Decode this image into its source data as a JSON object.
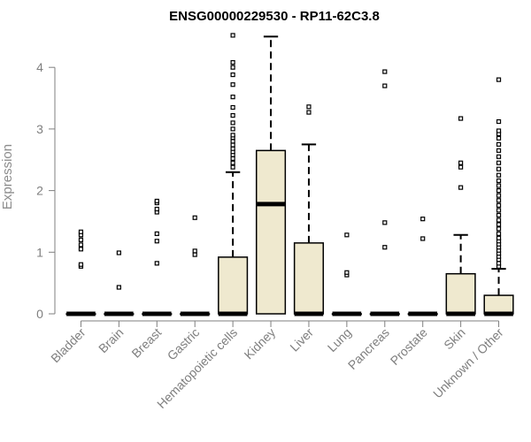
{
  "chart_data": {
    "type": "boxplot",
    "title": "ENSG00000229530 - RP11-62C3.8",
    "xlabel": "",
    "ylabel": "Expression",
    "ylim": [
      0,
      4.5
    ],
    "yticks": [
      0,
      1,
      2,
      3,
      4
    ],
    "box_fill": "#efe9cf",
    "categories": [
      "Bladder",
      "Brain",
      "Breast",
      "Gastric",
      "Hematopoietic cells",
      "Kidney",
      "Liver",
      "Lung",
      "Pancreas",
      "Prostate",
      "Skin",
      "Unknown / Other"
    ],
    "boxes": [
      {
        "q1": 0,
        "median": 0,
        "q3": 0,
        "whisker_low": 0,
        "whisker_high": 0,
        "outliers": [
          0.77,
          0.8,
          1.05,
          1.12,
          1.2,
          1.28,
          1.33
        ]
      },
      {
        "q1": 0,
        "median": 0,
        "q3": 0,
        "whisker_low": 0,
        "whisker_high": 0,
        "outliers": [
          0.43,
          0.99
        ]
      },
      {
        "q1": 0,
        "median": 0,
        "q3": 0,
        "whisker_low": 0,
        "whisker_high": 0,
        "outliers": [
          0.82,
          1.18,
          1.3,
          1.65,
          1.7,
          1.8,
          1.83
        ]
      },
      {
        "q1": 0,
        "median": 0,
        "q3": 0,
        "whisker_low": 0,
        "whisker_high": 0,
        "outliers": [
          0.96,
          1.02,
          1.56
        ]
      },
      {
        "q1": 0,
        "median": 0,
        "q3": 0.92,
        "whisker_low": 0,
        "whisker_high": 2.3,
        "outliers": [
          2.38,
          2.45,
          2.52,
          2.58,
          2.63,
          2.68,
          2.74,
          2.8,
          2.86,
          2.9,
          3.0,
          3.1,
          3.22,
          3.35,
          3.52,
          3.72,
          3.88,
          4.0,
          4.08,
          4.52
        ]
      },
      {
        "q1": 0,
        "median": 1.78,
        "q3": 2.65,
        "whisker_low": 0,
        "whisker_high": 4.5,
        "outliers": []
      },
      {
        "q1": 0,
        "median": 0,
        "q3": 1.15,
        "whisker_low": 0,
        "whisker_high": 2.75,
        "outliers": [
          3.27,
          3.36
        ]
      },
      {
        "q1": 0,
        "median": 0,
        "q3": 0,
        "whisker_low": 0,
        "whisker_high": 0,
        "outliers": [
          0.63,
          0.67,
          1.28
        ]
      },
      {
        "q1": 0,
        "median": 0,
        "q3": 0,
        "whisker_low": 0,
        "whisker_high": 0,
        "outliers": [
          1.08,
          1.48,
          3.7,
          3.93
        ]
      },
      {
        "q1": 0,
        "median": 0,
        "q3": 0,
        "whisker_low": 0,
        "whisker_high": 0,
        "outliers": [
          1.22,
          1.54
        ]
      },
      {
        "q1": 0,
        "median": 0,
        "q3": 0.65,
        "whisker_low": 0,
        "whisker_high": 1.28,
        "outliers": [
          2.05,
          2.38,
          2.45,
          3.17
        ]
      },
      {
        "q1": 0,
        "median": 0,
        "q3": 0.3,
        "whisker_low": 0,
        "whisker_high": 0.73,
        "outliers": [
          0.77,
          0.82,
          0.88,
          0.93,
          0.98,
          1.03,
          1.08,
          1.13,
          1.18,
          1.23,
          1.3,
          1.38,
          1.45,
          1.52,
          1.6,
          1.68,
          1.76,
          1.84,
          1.92,
          2.0,
          2.08,
          2.16,
          2.25,
          2.35,
          2.45,
          2.55,
          2.65,
          2.75,
          2.85,
          2.92,
          2.97,
          3.12,
          3.8
        ]
      }
    ]
  }
}
